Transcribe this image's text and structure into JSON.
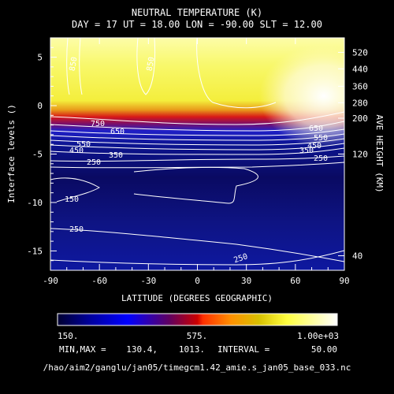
{
  "title_line1": "NEUTRAL TEMPERATURE (K)",
  "title_line2": "DAY =   17 UT = 18.00   LON =   -90.00   SLT = 12.00",
  "chart_data": {
    "type": "heatmap",
    "xlabel": "LATITUDE (DEGREES GEOGRAPHIC)",
    "ylabel": "Interface levels ()",
    "right_label": "AVE HEIGHT (KM)",
    "xlim": [
      -90,
      90
    ],
    "ylim": [
      -17,
      7
    ],
    "x_ticks": [
      "-90",
      "-60",
      "-30",
      "0",
      "30",
      "60",
      "90"
    ],
    "y_ticks": [
      "5",
      "0",
      "-5",
      "-10",
      "-15"
    ],
    "right_ticks": [
      "520",
      "440",
      "360",
      "280",
      "200",
      "120",
      "40"
    ],
    "contour_labels": [
      "850",
      "850",
      "750",
      "650",
      "550",
      "450",
      "350",
      "250",
      "150",
      "250",
      "250",
      "650",
      "550",
      "450",
      "350",
      "250"
    ],
    "colorbar": {
      "min_label": "150.",
      "mid_label": "575.",
      "max_label": "1.00e+03",
      "range": [
        150,
        1000
      ]
    },
    "stats": {
      "minmax_label": "MIN,MAX =",
      "min": "130.4,",
      "max": "1013.",
      "interval_label": "INTERVAL =",
      "interval": "50.00"
    }
  },
  "footer_path": "/hao/aim2/ganglu/jan05/timegcm1.42_amie.s_jan05_base_033.nc"
}
